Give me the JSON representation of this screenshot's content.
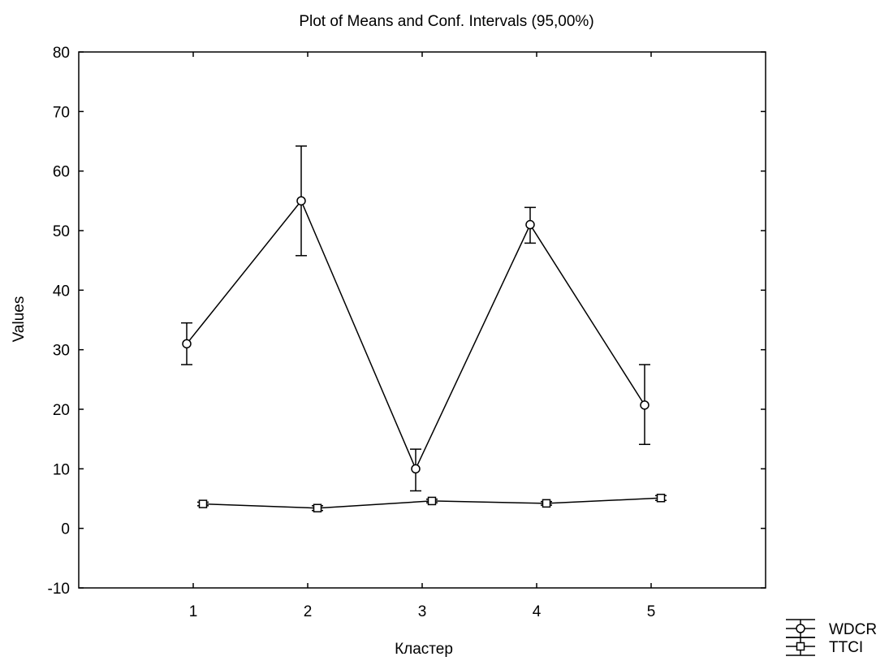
{
  "chart_data": {
    "type": "line",
    "title": "Plot of Means and Conf. Intervals (95,00%)",
    "xlabel": "Кластер",
    "ylabel": "Values",
    "categories": [
      "1",
      "2",
      "3",
      "4",
      "5"
    ],
    "ylim": [
      -10,
      80
    ],
    "yticks": [
      "-10",
      "0",
      "10",
      "20",
      "30",
      "40",
      "50",
      "60",
      "70",
      "80"
    ],
    "grid": false,
    "legend_position": "bottom-right",
    "series": [
      {
        "name": "WDCR",
        "marker": "circle",
        "values": [
          31.0,
          55.0,
          10.0,
          51.0,
          20.7
        ],
        "ci_lower": [
          27.5,
          45.8,
          6.3,
          47.9,
          14.1
        ],
        "ci_upper": [
          34.5,
          64.2,
          13.3,
          53.9,
          27.5
        ]
      },
      {
        "name": "TTCI",
        "marker": "square",
        "values": [
          4.1,
          3.4,
          4.6,
          4.2,
          5.1
        ],
        "ci_lower": [
          3.8,
          3.0,
          4.3,
          3.9,
          4.7
        ],
        "ci_upper": [
          4.4,
          3.8,
          4.9,
          4.5,
          5.5
        ]
      }
    ]
  }
}
